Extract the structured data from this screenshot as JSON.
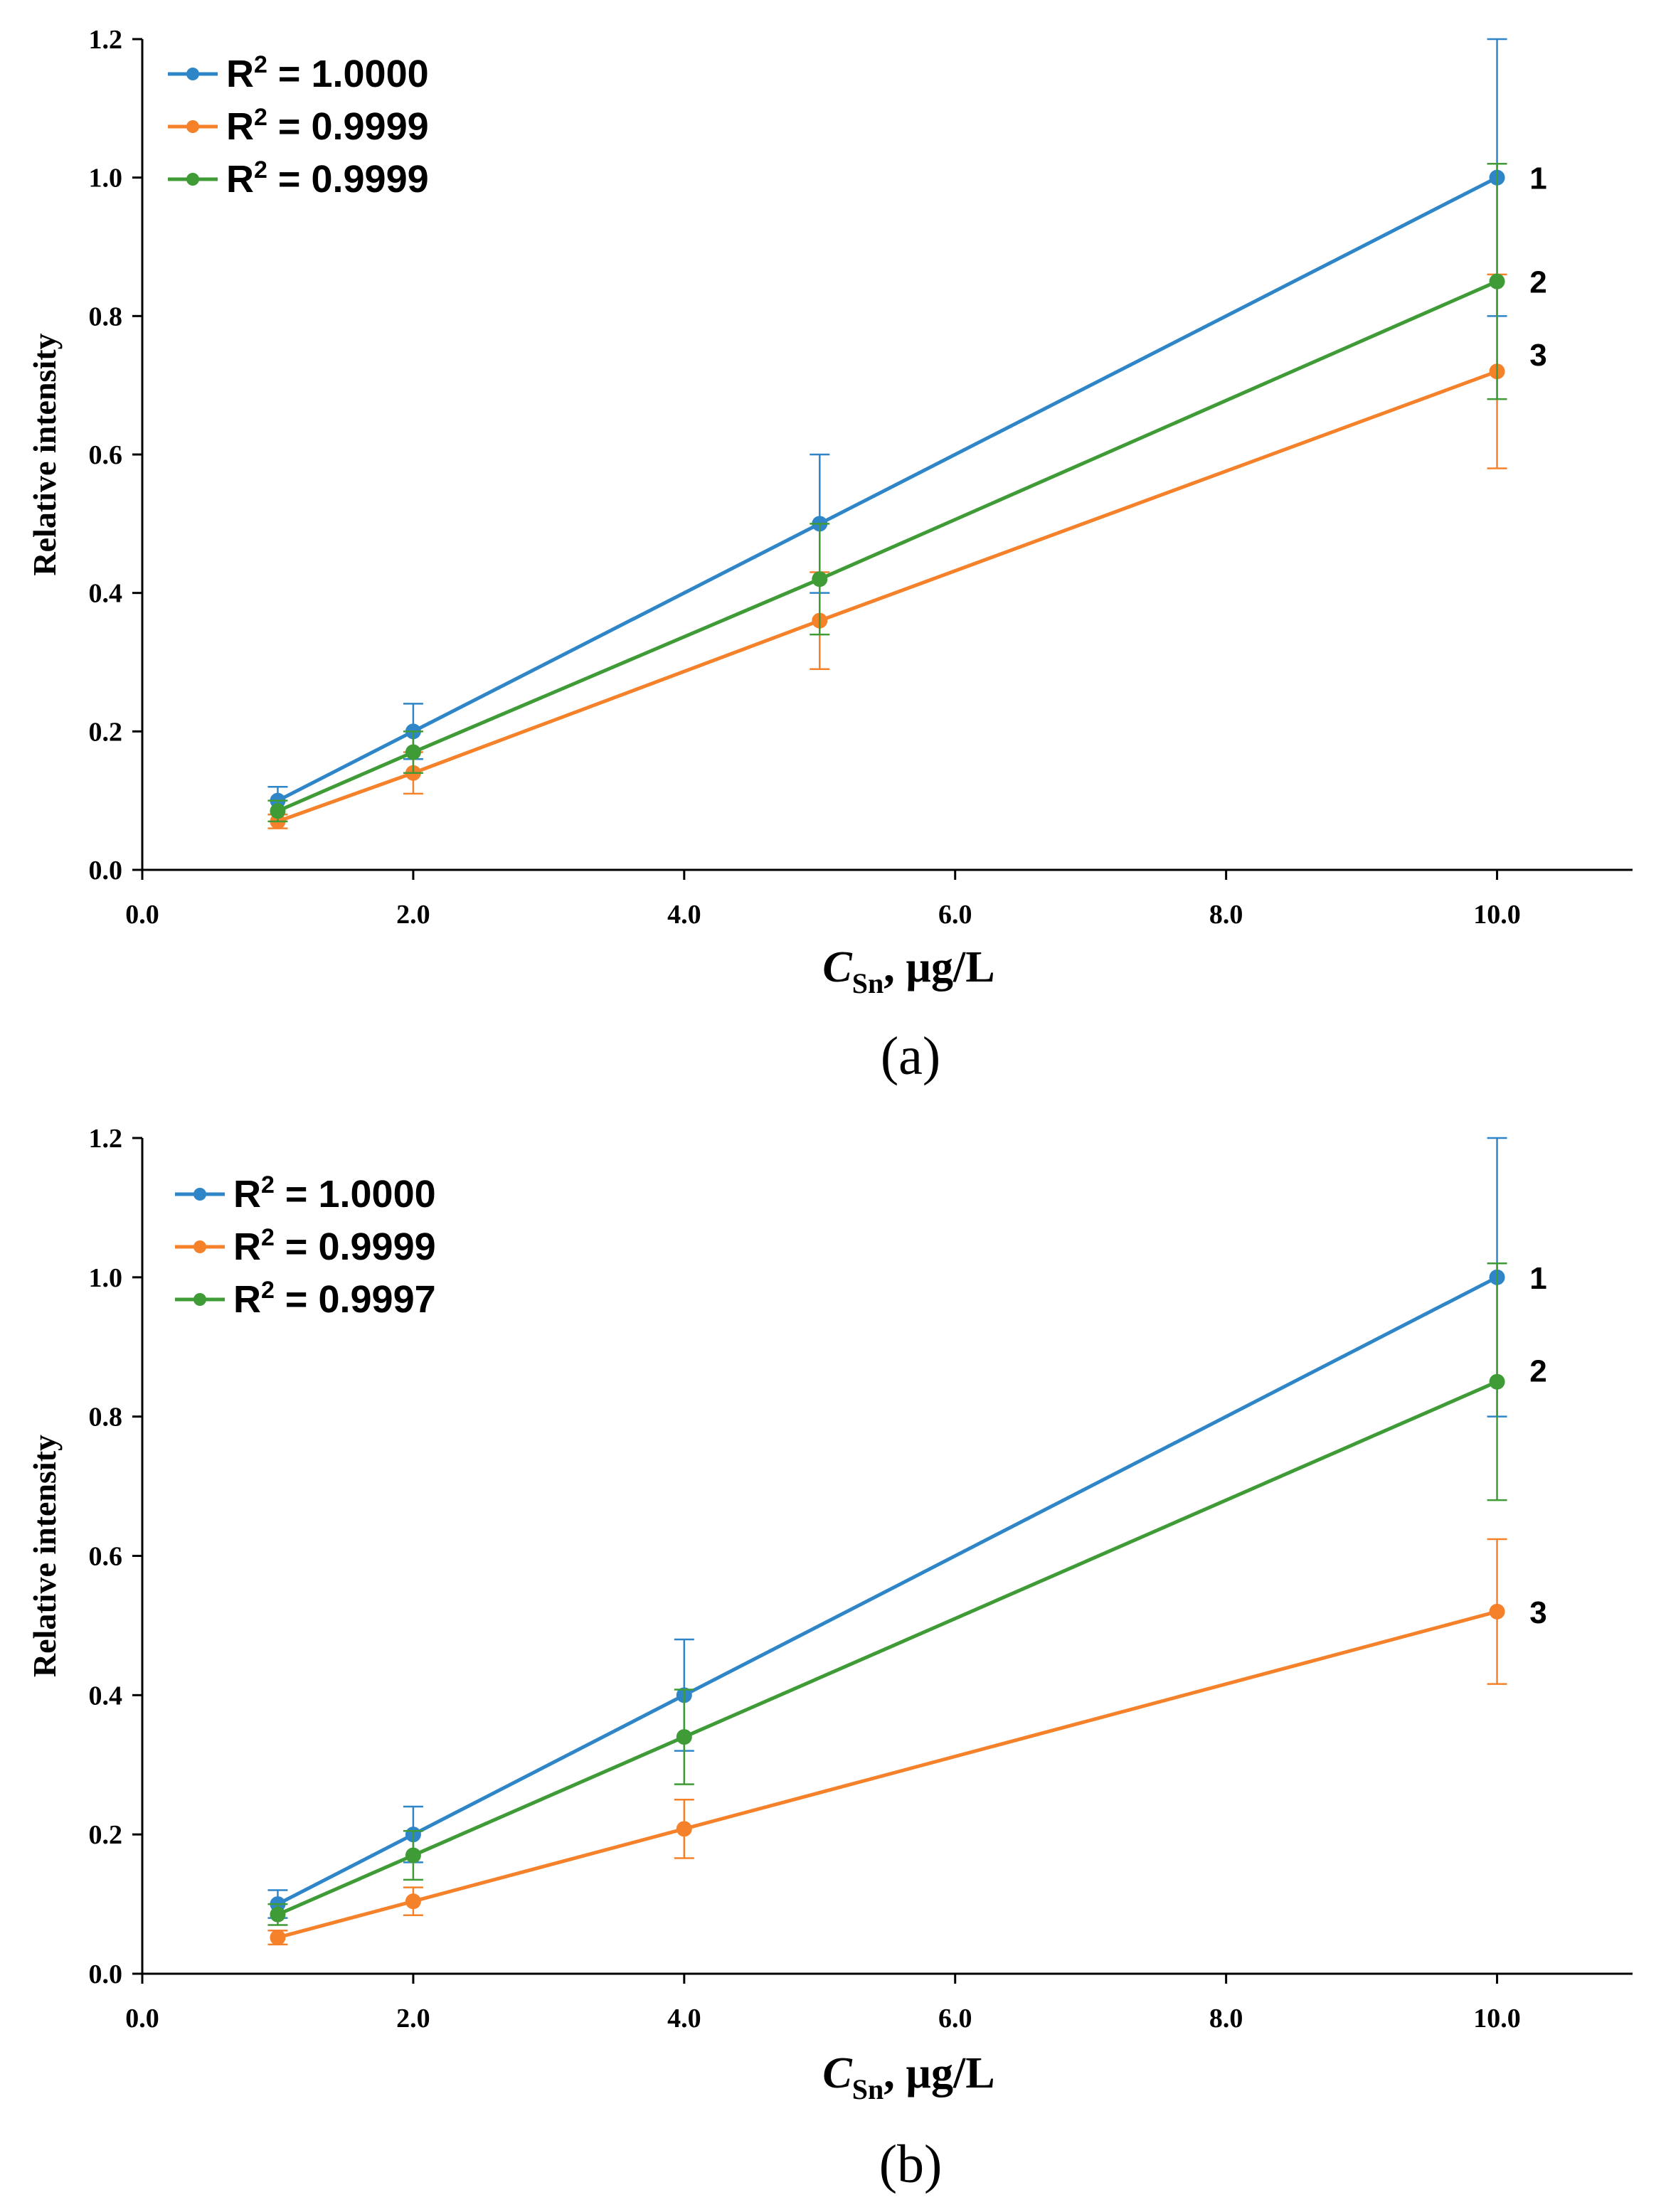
{
  "chart_data": [
    {
      "type": "line",
      "caption": "(a)",
      "xlabel_main": "C",
      "xlabel_sub": "Sn",
      "xlabel_unit": ", µg/L",
      "ylabel": "Relative intensity",
      "xlim": [
        0,
        11
      ],
      "ylim": [
        0,
        1.2
      ],
      "xticks": [
        "0.0",
        "2.0",
        "4.0",
        "6.0",
        "8.0",
        "10.0"
      ],
      "xtick_values": [
        0,
        2,
        4,
        6,
        8,
        10
      ],
      "yticks": [
        "0.0",
        "0.2",
        "0.4",
        "0.6",
        "0.8",
        "1.0",
        "1.2"
      ],
      "ytick_values": [
        0,
        0.2,
        0.4,
        0.6,
        0.8,
        1.0,
        1.2
      ],
      "legend_position": "top-left",
      "series": [
        {
          "name": "R² = 1.0000",
          "legend_prefix": "R",
          "legend_suffix": " = 1.0000",
          "curve_label": "1",
          "color": "#2E86C9",
          "x": [
            1,
            2,
            5,
            10
          ],
          "y": [
            0.1,
            0.2,
            0.5,
            1.0
          ],
          "err": [
            0.02,
            0.04,
            0.1,
            0.2
          ]
        },
        {
          "name": "R² = 0.9999",
          "legend_prefix": "R",
          "legend_suffix": " = 0.9999",
          "curve_label": "3",
          "color": "#F5822A",
          "x": [
            1,
            2,
            5,
            10
          ],
          "y": [
            0.07,
            0.14,
            0.36,
            0.72
          ],
          "err": [
            0.01,
            0.03,
            0.07,
            0.14
          ]
        },
        {
          "name": "R² = 0.9999",
          "legend_prefix": "R",
          "legend_suffix": " = 0.9999",
          "curve_label": "2",
          "color": "#3E9B35",
          "x": [
            1,
            2,
            5,
            10
          ],
          "y": [
            0.085,
            0.17,
            0.42,
            0.85
          ],
          "err": [
            0.015,
            0.03,
            0.08,
            0.17
          ]
        }
      ]
    },
    {
      "type": "line",
      "caption": "(b)",
      "xlabel_main": "C",
      "xlabel_sub": "Sn",
      "xlabel_unit": ", µg/L",
      "ylabel": "Relative intensity",
      "xlim": [
        0,
        11
      ],
      "ylim": [
        0,
        1.2
      ],
      "xticks": [
        "0.0",
        "2.0",
        "4.0",
        "6.0",
        "8.0",
        "10.0"
      ],
      "xtick_values": [
        0,
        2,
        4,
        6,
        8,
        10
      ],
      "yticks": [
        "0.0",
        "0.2",
        "0.4",
        "0.6",
        "0.8",
        "1.0",
        "1.2"
      ],
      "ytick_values": [
        0,
        0.2,
        0.4,
        0.6,
        0.8,
        1.0,
        1.2
      ],
      "legend_position": "top-left",
      "series": [
        {
          "name": "R² = 1.0000",
          "legend_prefix": "R",
          "legend_suffix": " = 1.0000",
          "curve_label": "1",
          "color": "#2E86C9",
          "x": [
            1,
            2,
            4,
            10
          ],
          "y": [
            0.1,
            0.2,
            0.4,
            1.0
          ],
          "err": [
            0.02,
            0.04,
            0.08,
            0.2
          ]
        },
        {
          "name": "R² = 0.9999",
          "legend_prefix": "R",
          "legend_suffix": " = 0.9999",
          "curve_label": "3",
          "color": "#F5822A",
          "x": [
            1,
            2,
            4,
            10
          ],
          "y": [
            0.052,
            0.104,
            0.208,
            0.52
          ],
          "err": [
            0.01,
            0.02,
            0.042,
            0.104
          ]
        },
        {
          "name": "R² = 0.9997",
          "legend_prefix": "R",
          "legend_suffix": " = 0.9997",
          "curve_label": "2",
          "color": "#3E9B35",
          "x": [
            1,
            2,
            4,
            10
          ],
          "y": [
            0.085,
            0.17,
            0.34,
            0.85
          ],
          "err": [
            0.015,
            0.035,
            0.068,
            0.17
          ]
        }
      ]
    }
  ]
}
